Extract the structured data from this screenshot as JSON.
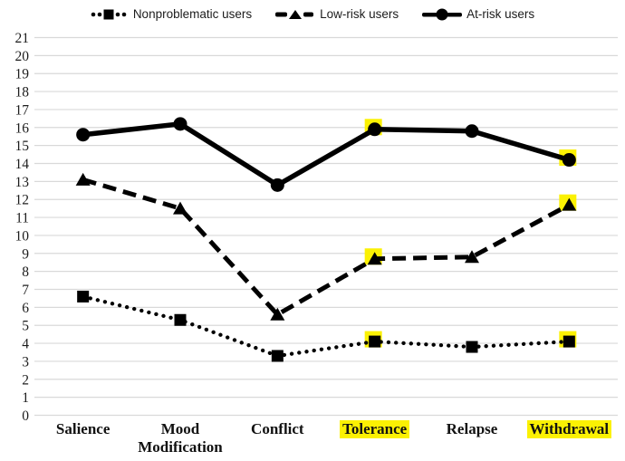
{
  "chart_data": {
    "type": "line",
    "title": "",
    "xlabel": "",
    "ylabel": "",
    "categories": [
      "Salience",
      "Mood Modification",
      "Conflict",
      "Tolerance",
      "Relapse",
      "Withdrawal"
    ],
    "highlighted_categories": [
      "Tolerance",
      "Withdrawal"
    ],
    "series": [
      {
        "name": "Nonproblematic users",
        "marker": "square",
        "line_style": "dotted",
        "values": [
          6.6,
          5.3,
          3.3,
          4.1,
          3.8,
          4.1
        ]
      },
      {
        "name": "Low-risk users",
        "marker": "triangle",
        "line_style": "dashed",
        "values": [
          13.1,
          11.5,
          5.6,
          8.7,
          8.8,
          11.7
        ]
      },
      {
        "name": "At-risk users",
        "marker": "circle",
        "line_style": "solid",
        "values": [
          15.6,
          16.2,
          12.8,
          15.9,
          15.8,
          14.2
        ]
      }
    ],
    "ylim": [
      0,
      21
    ],
    "ytick_step": 1,
    "ytick_labels": [
      "0",
      "1",
      "2",
      "3",
      "4",
      "5",
      "6",
      "7",
      "8",
      "9",
      "10",
      "11",
      "12",
      "13",
      "14",
      "15",
      "16",
      "17",
      "18",
      "19",
      "20",
      "21"
    ],
    "grid": true,
    "legend_position": "top-center",
    "colors": {
      "series": "#000000",
      "grid": "#d9d9d9",
      "highlight": "#FBF103",
      "text": "#1c1c1c",
      "background": "#ffffff"
    }
  }
}
